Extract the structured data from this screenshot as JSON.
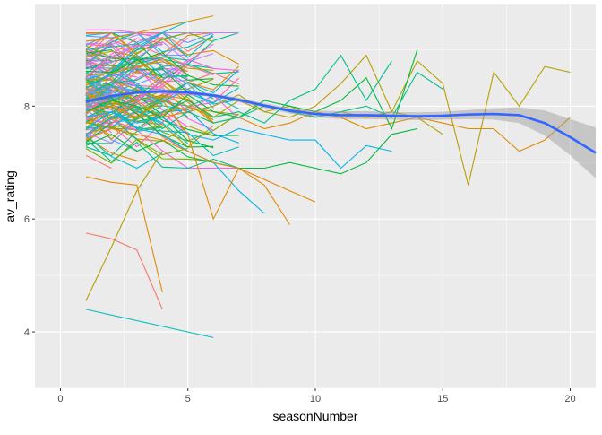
{
  "chart_data": {
    "type": "line",
    "title": "",
    "xlabel": "seasonNumber",
    "ylabel": "av_rating",
    "xlim": [
      -1,
      21
    ],
    "ylim": [
      3,
      9.8
    ],
    "x_ticks": [
      0,
      5,
      10,
      15,
      20
    ],
    "y_ticks": [
      4,
      6,
      8
    ],
    "grid": true,
    "legend": "none",
    "colors": {
      "panel_bg": "#ebebeb",
      "grid_major": "#ffffff",
      "smooth_line": "#3366ff",
      "ribbon": "#999999"
    },
    "series_colors": [
      "#f8766d",
      "#e08a00",
      "#b79f00",
      "#7cae00",
      "#00ba38",
      "#00c08b",
      "#00bfc4",
      "#00b4f0",
      "#619cff",
      "#c77cff",
      "#f564e3",
      "#ff64b0"
    ],
    "highlighted_series": [
      {
        "color": "#b79f00",
        "x": [
          1,
          2,
          3,
          4,
          5,
          6,
          7,
          8,
          9,
          10,
          11,
          12,
          13,
          14,
          15,
          16,
          17,
          18,
          19,
          20
        ],
        "y": [
          7.6,
          8.1,
          7.9,
          8.2,
          8.0,
          7.8,
          8.1,
          7.9,
          8.0,
          7.8,
          7.9,
          7.8,
          7.9,
          8.8,
          8.4,
          6.6,
          8.6,
          8.0,
          8.7,
          8.6
        ]
      },
      {
        "color": "#e08a00",
        "x": [
          1,
          2,
          3,
          4,
          5,
          6,
          7,
          8,
          9,
          10,
          11,
          12,
          13,
          14,
          15,
          16,
          17,
          18,
          19,
          20
        ],
        "y": [
          7.7,
          7.9,
          8.0,
          7.8,
          7.9,
          7.7,
          7.8,
          7.6,
          7.7,
          7.9,
          7.8,
          7.6,
          7.7,
          7.8,
          7.7,
          7.6,
          7.6,
          7.2,
          7.4,
          7.8
        ]
      },
      {
        "color": "#b79f00",
        "x": [
          1,
          2,
          3,
          4,
          5,
          6,
          7,
          8,
          9,
          10,
          11,
          12,
          13,
          14,
          15
        ],
        "y": [
          7.8,
          8.0,
          8.3,
          8.1,
          7.9,
          8.0,
          8.2,
          7.9,
          7.8,
          8.0,
          8.4,
          8.9,
          7.9,
          7.8,
          7.5
        ]
      },
      {
        "color": "#00ba38",
        "x": [
          1,
          2,
          3,
          4,
          5,
          6,
          7,
          8,
          9,
          10,
          11,
          12,
          13,
          14
        ],
        "y": [
          7.9,
          8.1,
          8.0,
          7.8,
          8.2,
          7.9,
          7.8,
          8.1,
          8.0,
          7.9,
          8.1,
          8.5,
          7.6,
          9.0
        ]
      },
      {
        "color": "#00c08b",
        "x": [
          1,
          2,
          3,
          4,
          5,
          6,
          7,
          8,
          9,
          10,
          11,
          12,
          13,
          14,
          15
        ],
        "y": [
          7.5,
          7.8,
          8.0,
          7.6,
          7.9,
          7.7,
          7.8,
          8.0,
          7.9,
          7.8,
          7.9,
          8.0,
          7.8,
          8.6,
          8.3
        ]
      },
      {
        "color": "#00b4f0",
        "x": [
          1,
          2,
          3,
          4,
          5,
          6,
          7,
          8,
          9,
          10,
          11,
          12,
          13
        ],
        "y": [
          7.6,
          7.9,
          7.7,
          7.8,
          7.5,
          7.4,
          7.6,
          7.5,
          7.4,
          7.4,
          6.9,
          7.3,
          7.2
        ]
      },
      {
        "color": "#00ba38",
        "x": [
          1,
          2,
          3,
          4,
          5,
          6,
          7,
          8,
          9,
          10,
          11,
          12,
          13,
          14
        ],
        "y": [
          7.3,
          7.5,
          7.2,
          7.4,
          7.1,
          7.0,
          6.9,
          6.9,
          7.0,
          6.9,
          6.8,
          7.0,
          7.5,
          7.6
        ]
      },
      {
        "color": "#00c08b",
        "x": [
          1,
          2,
          3,
          4,
          5,
          6,
          7,
          8,
          9,
          10,
          11,
          12,
          13
        ],
        "y": [
          7.8,
          8.0,
          7.6,
          7.9,
          8.1,
          7.8,
          7.9,
          7.7,
          8.1,
          8.3,
          8.9,
          8.1,
          8.8
        ]
      },
      {
        "color": "#f8766d",
        "x": [
          1,
          2,
          3,
          4
        ],
        "y": [
          5.75,
          5.65,
          5.45,
          4.4
        ]
      },
      {
        "color": "#e08a00",
        "x": [
          1,
          2,
          3,
          4
        ],
        "y": [
          6.75,
          6.65,
          6.6,
          4.7
        ]
      },
      {
        "color": "#b79f00",
        "x": [
          1,
          2,
          3,
          4
        ],
        "y": [
          4.55,
          5.5,
          6.5,
          7.2
        ]
      },
      {
        "color": "#00bfc4",
        "x": [
          1,
          6
        ],
        "y": [
          4.4,
          3.9
        ]
      },
      {
        "color": "#00b4f0",
        "x": [
          1,
          2,
          3,
          4,
          5,
          6,
          7,
          8
        ],
        "y": [
          7.8,
          7.9,
          7.6,
          7.5,
          7.2,
          7.0,
          6.5,
          6.1
        ]
      },
      {
        "color": "#e08a00",
        "x": [
          1,
          2,
          3,
          4,
          5,
          6,
          7,
          8,
          9,
          10
        ],
        "y": [
          7.4,
          7.6,
          7.5,
          7.4,
          7.2,
          7.0,
          6.9,
          6.7,
          6.5,
          6.3
        ]
      },
      {
        "color": "#e08a00",
        "x": [
          1,
          2,
          3,
          4,
          5,
          6,
          7,
          8,
          9
        ],
        "y": [
          7.9,
          8.0,
          7.8,
          8.1,
          7.5,
          6.0,
          6.9,
          6.6,
          5.9
        ]
      },
      {
        "color": "#e08a00",
        "x": [
          1,
          2,
          3,
          4,
          5,
          6
        ],
        "y": [
          9.15,
          9.2,
          9.3,
          9.4,
          9.5,
          9.6
        ]
      },
      {
        "color": "#f564e3",
        "x": [
          1,
          2,
          3,
          4
        ],
        "y": [
          9.35,
          9.35,
          9.3,
          9.2
        ]
      },
      {
        "color": "#00bfc4",
        "x": [
          1,
          2,
          3,
          4,
          5
        ],
        "y": [
          9.0,
          9.05,
          9.1,
          9.3,
          9.5
        ]
      }
    ],
    "background_series_count": 150,
    "background_series_x_range": [
      1,
      7
    ],
    "background_series_y_range": [
      6.9,
      9.3
    ],
    "smooth": {
      "x": [
        1,
        2,
        3,
        4,
        5,
        6,
        7,
        8,
        9,
        10,
        11,
        12,
        13,
        14,
        15,
        16,
        17,
        18,
        19,
        20,
        21
      ],
      "y": [
        8.08,
        8.18,
        8.24,
        8.26,
        8.24,
        8.19,
        8.11,
        8.01,
        7.92,
        7.86,
        7.84,
        7.84,
        7.83,
        7.82,
        7.83,
        7.85,
        7.86,
        7.84,
        7.7,
        7.45,
        7.17
      ],
      "se": [
        0.05,
        0.03,
        0.03,
        0.03,
        0.03,
        0.03,
        0.04,
        0.04,
        0.05,
        0.06,
        0.07,
        0.07,
        0.07,
        0.07,
        0.07,
        0.08,
        0.1,
        0.14,
        0.22,
        0.32,
        0.45
      ]
    }
  }
}
